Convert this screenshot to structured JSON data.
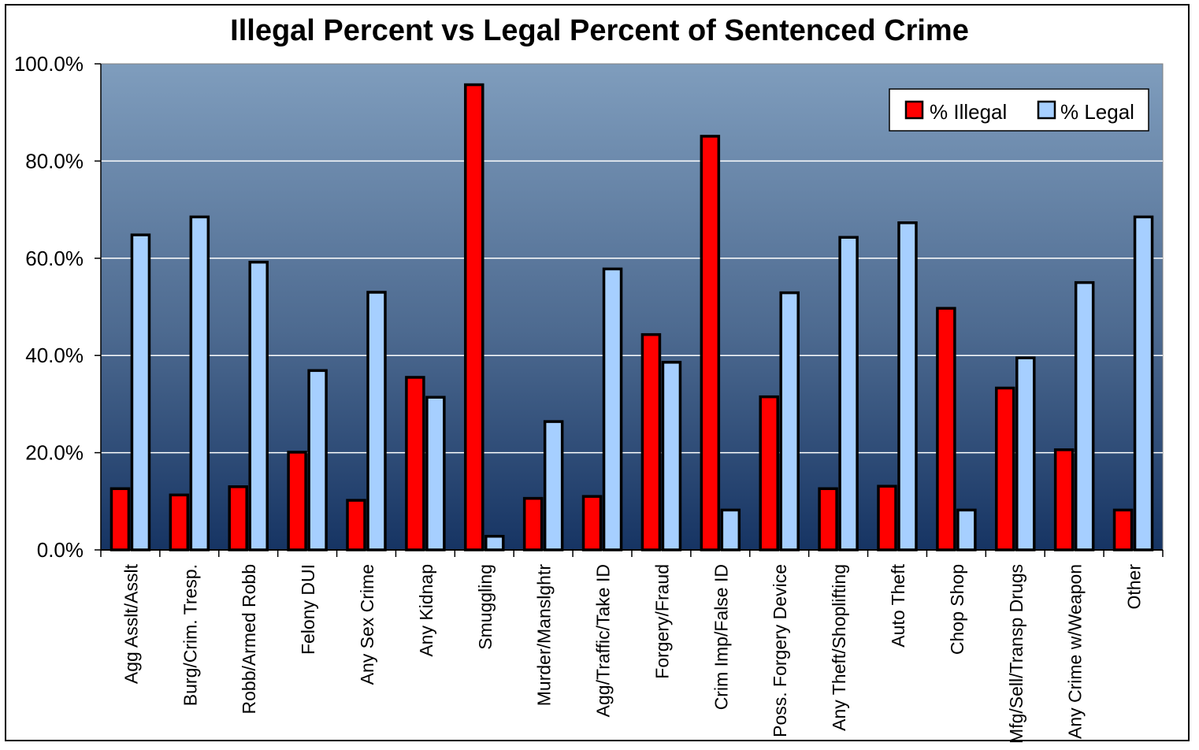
{
  "chart_data": {
    "type": "bar",
    "title": "Illegal Percent vs Legal Percent of Sentenced Crime",
    "xlabel": "",
    "ylabel": "",
    "ylim": [
      0,
      100
    ],
    "yticks": [
      "0.0%",
      "20.0%",
      "40.0%",
      "60.0%",
      "80.0%",
      "100.0%"
    ],
    "grid": true,
    "legend": "top-right",
    "categories": [
      "Agg Asslt/Asslt",
      "Burg/Crim. Tresp.",
      "Robb/Armed Robb",
      "Felony DUI",
      "Any Sex Crime",
      "Any Kidnap",
      "Smuggling",
      "Murder/Manslghtr",
      "Agg/Traffic/Take ID",
      "Forgery/Fraud",
      "Crim Imp/False ID",
      "Poss. Forgery Device",
      "Any Theft/Shoplifting",
      "Auto Theft",
      "Chop Shop",
      "Mfg/Sell/Transp Drugs",
      "Any Crime w/Weapon",
      "Other"
    ],
    "series": [
      {
        "name": "% Illegal",
        "color": "#ff0000",
        "values": [
          12.6,
          11.3,
          13.0,
          20.1,
          10.2,
          35.5,
          95.7,
          10.6,
          11.0,
          44.3,
          85.1,
          31.5,
          12.6,
          13.1,
          49.7,
          33.3,
          20.6,
          8.2
        ]
      },
      {
        "name": "% Legal",
        "color": "#a6cfff",
        "values": [
          64.8,
          68.5,
          59.2,
          36.9,
          53.0,
          31.4,
          2.8,
          26.4,
          57.8,
          38.6,
          8.2,
          52.9,
          64.3,
          67.3,
          8.2,
          39.5,
          55.0,
          68.5
        ]
      }
    ]
  }
}
